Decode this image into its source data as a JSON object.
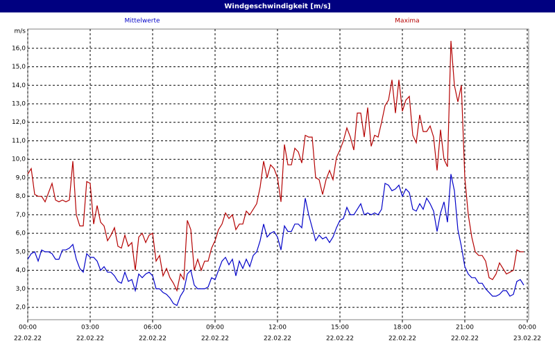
{
  "chart_data": {
    "type": "line",
    "title": "Windgeschwindigkeit [m/s]",
    "y_label": "m/s",
    "x": [
      0,
      10,
      20,
      30,
      40,
      50,
      60,
      70,
      80,
      90,
      100,
      110,
      120,
      130,
      140,
      150,
      160,
      170,
      180,
      190,
      200,
      210,
      220,
      230,
      240,
      250,
      260,
      270,
      280,
      290,
      300,
      310,
      320,
      330,
      340,
      350,
      360,
      370,
      380,
      390,
      400,
      410,
      420,
      430,
      440,
      450,
      460,
      470,
      480,
      490,
      500,
      510,
      520,
      530,
      540,
      550,
      560,
      570,
      580,
      590,
      600,
      610,
      620,
      630,
      640,
      650,
      660,
      670,
      680,
      690,
      700,
      710,
      720,
      730,
      740,
      750,
      760,
      770,
      780,
      790,
      800,
      810,
      820,
      830,
      840,
      850,
      860,
      870,
      880,
      890,
      900,
      910,
      920,
      930,
      940,
      950,
      960,
      970,
      980,
      990,
      1000,
      1010,
      1020,
      1030,
      1040,
      1050,
      1060,
      1070,
      1080,
      1090,
      1100,
      1110,
      1120,
      1130,
      1140,
      1150,
      1160,
      1170,
      1180,
      1190,
      1200,
      1210,
      1220,
      1230,
      1240,
      1250,
      1260,
      1270,
      1280,
      1290,
      1300,
      1310,
      1320,
      1330,
      1340,
      1350,
      1360,
      1370,
      1380,
      1390,
      1400,
      1410,
      1420,
      1430
    ],
    "series": [
      {
        "name": "Mittelwerte",
        "color": "#0000c8",
        "values": [
          4.6,
          4.9,
          5.0,
          4.5,
          5.1,
          5.0,
          5.0,
          4.9,
          4.6,
          4.6,
          5.1,
          5.1,
          5.2,
          5.4,
          4.6,
          4.1,
          3.9,
          4.9,
          4.7,
          4.7,
          4.5,
          4.0,
          4.2,
          3.9,
          3.9,
          3.7,
          3.4,
          3.3,
          3.9,
          3.4,
          3.5,
          2.9,
          3.8,
          3.6,
          3.8,
          3.9,
          3.7,
          3.0,
          3.0,
          2.8,
          2.7,
          2.5,
          2.2,
          2.1,
          2.6,
          2.9,
          3.8,
          4.0,
          3.2,
          3.0,
          3.0,
          3.0,
          3.1,
          3.6,
          3.5,
          4.0,
          4.5,
          4.7,
          4.3,
          4.6,
          3.7,
          4.5,
          4.1,
          4.6,
          4.2,
          4.8,
          5.0,
          5.6,
          6.5,
          5.8,
          6.0,
          6.1,
          5.8,
          5.1,
          6.4,
          6.1,
          6.1,
          6.5,
          6.5,
          6.3,
          7.9,
          7.0,
          6.3,
          5.6,
          5.9,
          5.7,
          5.8,
          5.5,
          5.8,
          6.3,
          6.7,
          6.8,
          7.4,
          7.0,
          7.0,
          7.3,
          7.6,
          7.0,
          7.1,
          7.0,
          7.1,
          7.0,
          7.3,
          8.7,
          8.6,
          8.3,
          8.4,
          8.6,
          8.0,
          8.4,
          8.2,
          7.3,
          7.2,
          7.6,
          7.3,
          7.9,
          7.6,
          7.2,
          6.1,
          7.1,
          7.7,
          6.6,
          9.2,
          8.3,
          6.2,
          5.3,
          4.2,
          3.8,
          3.6,
          3.6,
          3.3,
          3.3,
          3.0,
          2.8,
          2.6,
          2.6,
          2.7,
          2.9,
          2.9,
          2.6,
          2.7,
          3.4,
          3.5,
          3.2
        ]
      },
      {
        "name": "Maxima",
        "color": "#b40000",
        "values": [
          9.2,
          9.5,
          8.1,
          8.0,
          8.0,
          7.7,
          8.2,
          8.7,
          7.8,
          7.7,
          7.8,
          7.7,
          7.8,
          9.9,
          7.0,
          6.4,
          6.4,
          8.8,
          8.7,
          6.5,
          7.5,
          6.6,
          6.4,
          5.6,
          5.9,
          6.3,
          5.3,
          5.2,
          5.9,
          5.3,
          5.5,
          4.0,
          5.8,
          6.0,
          5.5,
          5.9,
          6.0,
          4.5,
          4.8,
          3.7,
          4.1,
          3.6,
          3.3,
          2.9,
          3.8,
          3.5,
          6.7,
          6.2,
          4.0,
          4.6,
          4.0,
          4.5,
          4.5,
          5.2,
          5.6,
          6.2,
          6.5,
          7.1,
          6.8,
          7.0,
          6.2,
          6.5,
          6.5,
          7.2,
          7.0,
          7.3,
          7.6,
          8.5,
          9.9,
          9.0,
          9.7,
          9.5,
          9.0,
          7.7,
          10.8,
          9.7,
          9.7,
          10.6,
          10.4,
          9.8,
          11.3,
          11.2,
          11.2,
          9.0,
          8.9,
          8.1,
          8.9,
          9.4,
          8.9,
          10.1,
          10.5,
          11.0,
          11.7,
          11.2,
          10.5,
          12.5,
          12.5,
          11.2,
          12.8,
          10.7,
          11.3,
          11.2,
          12.0,
          12.9,
          13.2,
          14.3,
          12.5,
          14.3,
          12.6,
          13.2,
          13.4,
          11.3,
          10.9,
          12.4,
          11.5,
          11.5,
          11.8,
          11.2,
          9.4,
          11.6,
          10.0,
          9.6,
          16.4,
          14.0,
          13.1,
          14.0,
          9.0,
          7.0,
          5.8,
          5.0,
          4.8,
          4.8,
          4.5,
          3.6,
          3.5,
          3.8,
          4.4,
          4.1,
          3.8,
          3.9,
          4.0,
          5.1,
          5.0,
          5.0
        ]
      }
    ],
    "xlim": [
      0,
      1440
    ],
    "xticks": [
      {
        "value": 0,
        "label": "00:00"
      },
      {
        "value": 180,
        "label": "03:00"
      },
      {
        "value": 360,
        "label": "06:00"
      },
      {
        "value": 540,
        "label": "09:00"
      },
      {
        "value": 720,
        "label": "12:00"
      },
      {
        "value": 900,
        "label": "15:00"
      },
      {
        "value": 1080,
        "label": "18:00"
      },
      {
        "value": 1260,
        "label": "21:00"
      },
      {
        "value": 1440,
        "label": "00:00"
      }
    ],
    "xtick_dates": [
      "22.02.22",
      "22.02.22",
      "22.02.22",
      "22.02.22",
      "22.02.22",
      "22.02.22",
      "22.02.22",
      "22.02.22",
      "23.02.22"
    ],
    "ylim": [
      1.33,
      17.04
    ],
    "yticks": [
      {
        "value": 2,
        "label": "2,0"
      },
      {
        "value": 3,
        "label": "3,0"
      },
      {
        "value": 4,
        "label": "4,0"
      },
      {
        "value": 5,
        "label": "5,0"
      },
      {
        "value": 6,
        "label": "6,0"
      },
      {
        "value": 7,
        "label": "7,0"
      },
      {
        "value": 8,
        "label": "8,0"
      },
      {
        "value": 9,
        "label": "9,0"
      },
      {
        "value": 10,
        "label": "10,0"
      },
      {
        "value": 11,
        "label": "11,0"
      },
      {
        "value": 12,
        "label": "12,0"
      },
      {
        "value": 13,
        "label": "13,0"
      },
      {
        "value": 14,
        "label": "14,0"
      },
      {
        "value": 15,
        "label": "15,0"
      },
      {
        "value": 16,
        "label": "16,0"
      }
    ],
    "grid": true
  }
}
